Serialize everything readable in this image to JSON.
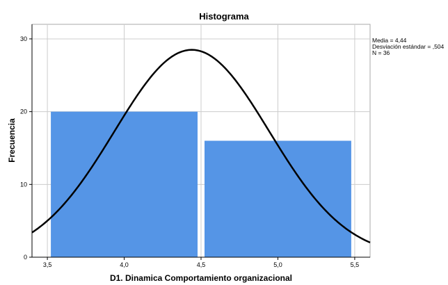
{
  "chart_data": {
    "type": "bar",
    "title": "Histograma",
    "xlabel": "D1. Dinamica Comportamiento organizacional",
    "ylabel": "Frecuencia",
    "bins": [
      {
        "start": 3.5,
        "end": 4.5,
        "count": 20
      },
      {
        "start": 4.5,
        "end": 5.5,
        "count": 16
      }
    ],
    "xlim": [
      3.4,
      5.6
    ],
    "ylim": [
      0,
      32
    ],
    "x_ticks": [
      3.5,
      4.0,
      4.5,
      5.0,
      5.5
    ],
    "x_tick_labels": [
      "3,5",
      "4,0",
      "4,5",
      "5,0",
      "5,5"
    ],
    "y_ticks": [
      0,
      10,
      20,
      30
    ],
    "y_tick_labels": [
      "0",
      "10",
      "20",
      "30"
    ],
    "grid": true,
    "normal_curve": {
      "mean": 4.44,
      "sd": 0.504,
      "n": 36,
      "bin_width": 1.0
    },
    "bar_color": "#5595e6",
    "curve_color": "#000000",
    "stats_text": [
      "Media = 4,44",
      "Desviación estándar = ,504",
      "N = 36"
    ],
    "legend_position": "top-right"
  }
}
